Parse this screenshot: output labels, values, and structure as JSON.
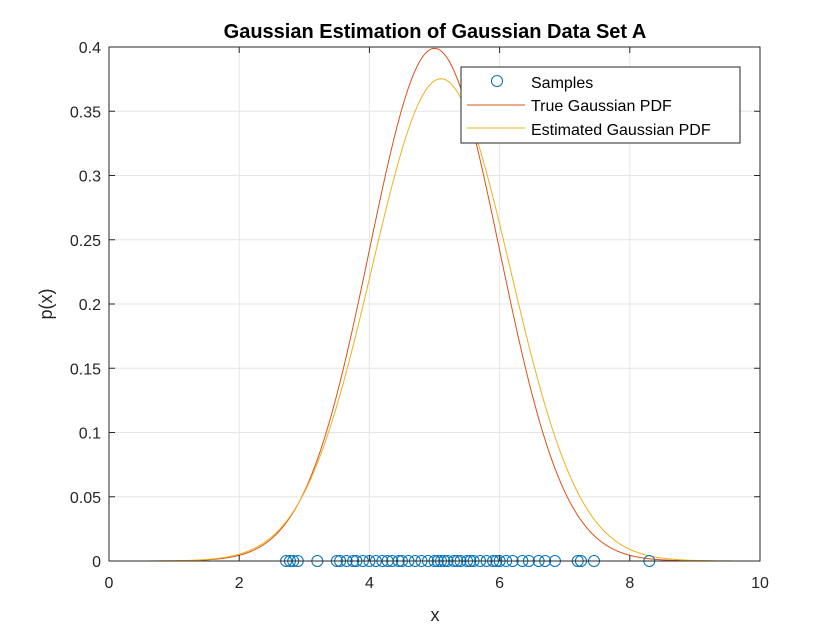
{
  "chart_data": {
    "type": "line",
    "title": "Gaussian Estimation of Gaussian Data Set A",
    "xlabel": "x",
    "ylabel": "p(x)",
    "xlim": [
      0,
      10
    ],
    "ylim": [
      0,
      0.4
    ],
    "xticks": [
      0,
      2,
      4,
      6,
      8,
      10
    ],
    "xtick_labels": [
      "0",
      "2",
      "4",
      "6",
      "8",
      "10"
    ],
    "yticks": [
      0,
      0.05,
      0.1,
      0.15,
      0.2,
      0.25,
      0.3,
      0.35,
      0.4
    ],
    "ytick_labels": [
      "0",
      "0.05",
      "0.1",
      "0.15",
      "0.2",
      "0.25",
      "0.3",
      "0.35",
      "0.4"
    ],
    "grid": true,
    "legend_position": "top-right",
    "series": [
      {
        "name": "Samples",
        "kind": "scatter",
        "marker": "circle",
        "color": "#0072BD",
        "x": [
          2.72,
          2.78,
          2.83,
          2.9,
          3.2,
          3.5,
          3.55,
          3.65,
          3.75,
          3.8,
          3.9,
          4.0,
          4.1,
          4.2,
          4.28,
          4.35,
          4.45,
          4.5,
          4.6,
          4.7,
          4.8,
          4.9,
          5.0,
          5.05,
          5.1,
          5.15,
          5.2,
          5.3,
          5.35,
          5.4,
          5.5,
          5.55,
          5.6,
          5.7,
          5.8,
          5.9,
          5.95,
          6.0,
          6.1,
          6.2,
          6.35,
          6.45,
          6.6,
          6.7,
          6.85,
          7.2,
          7.25,
          7.45,
          8.3
        ],
        "y": [
          0,
          0,
          0,
          0,
          0,
          0,
          0,
          0,
          0,
          0,
          0,
          0,
          0,
          0,
          0,
          0,
          0,
          0,
          0,
          0,
          0,
          0,
          0,
          0,
          0,
          0,
          0,
          0,
          0,
          0,
          0,
          0,
          0,
          0,
          0,
          0,
          0,
          0,
          0,
          0,
          0,
          0,
          0,
          0,
          0,
          0,
          0,
          0,
          0
        ]
      },
      {
        "name": "True Gaussian PDF",
        "kind": "line",
        "color": "#D95319",
        "mean": 5,
        "std": 1
      },
      {
        "name": "Estimated Gaussian PDF",
        "kind": "line",
        "color": "#EDB120",
        "mean": 5.1,
        "std": 1.063
      }
    ]
  }
}
